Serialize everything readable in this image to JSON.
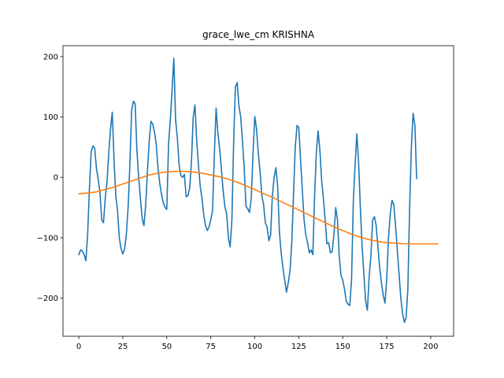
{
  "chart_data": {
    "type": "line",
    "title": "grace_lwe_cm KRISHNA",
    "xlabel": "",
    "ylabel": "",
    "xlim": [
      -9,
      213
    ],
    "ylim": [
      -263,
      218
    ],
    "grid": false,
    "x_ticks": [
      0,
      25,
      50,
      75,
      100,
      125,
      150,
      175,
      200
    ],
    "y_ticks": [
      -200,
      -100,
      0,
      100,
      200
    ],
    "x_tick_labels": [
      "0",
      "25",
      "50",
      "75",
      "100",
      "125",
      "150",
      "175",
      "200"
    ],
    "y_tick_labels": [
      "−200",
      "−100",
      "0",
      "100",
      "200"
    ],
    "series": [
      {
        "color": "#1f77b4",
        "points": [
          [
            0,
            -128
          ],
          [
            1,
            -120
          ],
          [
            2,
            -122
          ],
          [
            3,
            -128
          ],
          [
            4,
            -138
          ],
          [
            5,
            -95
          ],
          [
            6,
            -20
          ],
          [
            7,
            42
          ],
          [
            8,
            52
          ],
          [
            9,
            49
          ],
          [
            10,
            15
          ],
          [
            11,
            -3
          ],
          [
            12,
            -25
          ],
          [
            13,
            -70
          ],
          [
            14,
            -75
          ],
          [
            15,
            -35
          ],
          [
            16,
            -8
          ],
          [
            17,
            40
          ],
          [
            18,
            80
          ],
          [
            19,
            108
          ],
          [
            20,
            30
          ],
          [
            21,
            -30
          ],
          [
            22,
            -55
          ],
          [
            23,
            -100
          ],
          [
            24,
            -118
          ],
          [
            25,
            -127
          ],
          [
            26,
            -118
          ],
          [
            27,
            -95
          ],
          [
            28,
            -50
          ],
          [
            29,
            20
          ],
          [
            30,
            110
          ],
          [
            31,
            126
          ],
          [
            32,
            122
          ],
          [
            33,
            45
          ],
          [
            34,
            0
          ],
          [
            35,
            -35
          ],
          [
            36,
            -68
          ],
          [
            37,
            -80
          ],
          [
            38,
            -45
          ],
          [
            39,
            10
          ],
          [
            40,
            60
          ],
          [
            41,
            93
          ],
          [
            42,
            88
          ],
          [
            43,
            75
          ],
          [
            44,
            55
          ],
          [
            45,
            15
          ],
          [
            46,
            -10
          ],
          [
            47,
            -28
          ],
          [
            48,
            -42
          ],
          [
            49,
            -50
          ],
          [
            50,
            -53
          ],
          [
            51,
            55
          ],
          [
            52,
            95
          ],
          [
            53,
            145
          ],
          [
            54,
            197
          ],
          [
            55,
            95
          ],
          [
            56,
            65
          ],
          [
            57,
            20
          ],
          [
            58,
            3
          ],
          [
            59,
            0
          ],
          [
            60,
            5
          ],
          [
            61,
            -32
          ],
          [
            62,
            -30
          ],
          [
            63,
            -18
          ],
          [
            64,
            25
          ],
          [
            65,
            100
          ],
          [
            66,
            120
          ],
          [
            67,
            60
          ],
          [
            68,
            20
          ],
          [
            69,
            -15
          ],
          [
            70,
            -35
          ],
          [
            71,
            -62
          ],
          [
            72,
            -80
          ],
          [
            73,
            -88
          ],
          [
            74,
            -82
          ],
          [
            75,
            -70
          ],
          [
            76,
            -55
          ],
          [
            77,
            35
          ],
          [
            78,
            115
          ],
          [
            79,
            75
          ],
          [
            80,
            48
          ],
          [
            81,
            15
          ],
          [
            82,
            -22
          ],
          [
            83,
            -48
          ],
          [
            84,
            -60
          ],
          [
            85,
            -100
          ],
          [
            86,
            -115
          ],
          [
            87,
            -70
          ],
          [
            88,
            60
          ],
          [
            89,
            150
          ],
          [
            90,
            157
          ],
          [
            91,
            118
          ],
          [
            92,
            100
          ],
          [
            93,
            60
          ],
          [
            94,
            15
          ],
          [
            95,
            -48
          ],
          [
            96,
            -52
          ],
          [
            97,
            -58
          ],
          [
            98,
            -35
          ],
          [
            99,
            40
          ],
          [
            100,
            101
          ],
          [
            101,
            80
          ],
          [
            102,
            40
          ],
          [
            103,
            10
          ],
          [
            104,
            -30
          ],
          [
            105,
            -45
          ],
          [
            106,
            -75
          ],
          [
            107,
            -82
          ],
          [
            108,
            -105
          ],
          [
            109,
            -95
          ],
          [
            110,
            -30
          ],
          [
            111,
            0
          ],
          [
            112,
            16
          ],
          [
            113,
            -15
          ],
          [
            114,
            -90
          ],
          [
            115,
            -125
          ],
          [
            116,
            -150
          ],
          [
            117,
            -170
          ],
          [
            118,
            -190
          ],
          [
            119,
            -175
          ],
          [
            120,
            -155
          ],
          [
            121,
            -110
          ],
          [
            122,
            -30
          ],
          [
            123,
            50
          ],
          [
            124,
            86
          ],
          [
            125,
            83
          ],
          [
            126,
            30
          ],
          [
            127,
            -20
          ],
          [
            128,
            -70
          ],
          [
            129,
            -95
          ],
          [
            130,
            -108
          ],
          [
            131,
            -125
          ],
          [
            132,
            -120
          ],
          [
            133,
            -128
          ],
          [
            134,
            -30
          ],
          [
            135,
            42
          ],
          [
            136,
            77
          ],
          [
            137,
            45
          ],
          [
            138,
            -5
          ],
          [
            139,
            -35
          ],
          [
            140,
            -70
          ],
          [
            141,
            -110
          ],
          [
            142,
            -108
          ],
          [
            143,
            -125
          ],
          [
            144,
            -123
          ],
          [
            145,
            -95
          ],
          [
            146,
            -50
          ],
          [
            147,
            -70
          ],
          [
            148,
            -130
          ],
          [
            149,
            -162
          ],
          [
            150,
            -170
          ],
          [
            151,
            -185
          ],
          [
            152,
            -205
          ],
          [
            153,
            -210
          ],
          [
            154,
            -212
          ],
          [
            155,
            -170
          ],
          [
            156,
            -40
          ],
          [
            157,
            20
          ],
          [
            158,
            72
          ],
          [
            159,
            25
          ],
          [
            160,
            -50
          ],
          [
            161,
            -115
          ],
          [
            162,
            -160
          ],
          [
            163,
            -205
          ],
          [
            164,
            -220
          ],
          [
            165,
            -165
          ],
          [
            166,
            -130
          ],
          [
            167,
            -70
          ],
          [
            168,
            -65
          ],
          [
            169,
            -80
          ],
          [
            170,
            -115
          ],
          [
            171,
            -150
          ],
          [
            172,
            -175
          ],
          [
            173,
            -195
          ],
          [
            174,
            -208
          ],
          [
            175,
            -168
          ],
          [
            176,
            -100
          ],
          [
            177,
            -60
          ],
          [
            178,
            -38
          ],
          [
            179,
            -45
          ],
          [
            180,
            -80
          ],
          [
            181,
            -120
          ],
          [
            182,
            -160
          ],
          [
            183,
            -200
          ],
          [
            184,
            -225
          ],
          [
            185,
            -240
          ],
          [
            186,
            -232
          ],
          [
            187,
            -185
          ],
          [
            188,
            -50
          ],
          [
            189,
            50
          ],
          [
            190,
            106
          ],
          [
            191,
            86
          ],
          [
            192,
            -2
          ]
        ]
      },
      {
        "color": "#ff7f0e",
        "points": [
          [
            0,
            -27
          ],
          [
            5,
            -26
          ],
          [
            10,
            -24
          ],
          [
            15,
            -20
          ],
          [
            20,
            -16
          ],
          [
            25,
            -11
          ],
          [
            30,
            -6
          ],
          [
            35,
            -1
          ],
          [
            40,
            4
          ],
          [
            45,
            7
          ],
          [
            50,
            9
          ],
          [
            55,
            10
          ],
          [
            60,
            10
          ],
          [
            65,
            9
          ],
          [
            70,
            7
          ],
          [
            75,
            4
          ],
          [
            80,
            1
          ],
          [
            85,
            -3
          ],
          [
            90,
            -8
          ],
          [
            95,
            -14
          ],
          [
            100,
            -20
          ],
          [
            105,
            -27
          ],
          [
            110,
            -33
          ],
          [
            115,
            -40
          ],
          [
            120,
            -47
          ],
          [
            125,
            -54
          ],
          [
            130,
            -61
          ],
          [
            135,
            -68
          ],
          [
            140,
            -75
          ],
          [
            145,
            -82
          ],
          [
            150,
            -88
          ],
          [
            155,
            -94
          ],
          [
            160,
            -99
          ],
          [
            165,
            -103
          ],
          [
            170,
            -106
          ],
          [
            175,
            -108
          ],
          [
            180,
            -109
          ],
          [
            185,
            -110
          ],
          [
            190,
            -110
          ],
          [
            195,
            -110
          ],
          [
            200,
            -110
          ],
          [
            204,
            -110
          ]
        ]
      }
    ]
  }
}
